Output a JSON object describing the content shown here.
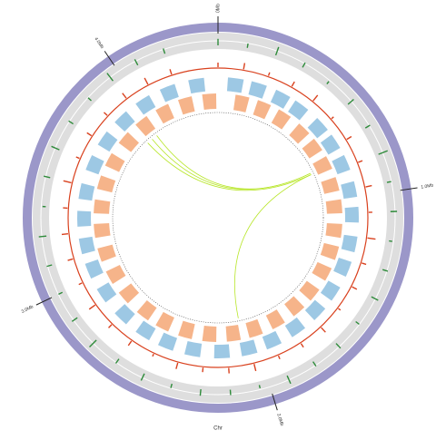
{
  "chart_data": {
    "type": "circos",
    "xlabel": "Chr",
    "xlim": [
      0,
      4.42
    ],
    "xticks": [
      {
        "value": 0,
        "label": "0Mb"
      },
      {
        "value": 1,
        "label": "1.0Mb"
      },
      {
        "value": 2,
        "label": "2.0Mb"
      },
      {
        "value": 3,
        "label": "3.0Mb"
      },
      {
        "value": 4,
        "label": "4.0Mb"
      }
    ],
    "x": [
      0,
      0.12,
      0.24,
      0.36,
      0.48,
      0.6,
      0.72,
      0.84,
      0.96,
      1.08,
      1.2,
      1.32,
      1.44,
      1.56,
      1.68,
      1.8,
      1.92,
      2.04,
      2.16,
      2.28,
      2.4,
      2.52,
      2.64,
      2.76,
      2.88,
      3.0,
      3.12,
      3.24,
      3.36,
      3.48,
      3.6,
      3.72,
      3.84,
      3.96,
      4.08,
      4.2
    ],
    "series": [
      {
        "color": "#2e8b3a",
        "values": [
          0.6,
          0.4,
          0.8,
          0.5,
          0.3,
          0.7,
          0.5,
          0.9,
          0.4,
          0.6,
          0.3,
          0.5,
          0.7,
          0.4,
          0.6,
          0.5,
          0.8,
          0.3,
          0.5,
          0.6,
          0.4,
          0.7,
          0.5,
          0.9,
          0.6,
          0.4,
          0.5,
          0.7,
          0.3,
          0.6,
          0.8,
          0.5,
          0.4,
          0.9,
          0.6,
          0.5
        ]
      },
      {
        "color": "#d9411e",
        "values": [
          0.5,
          0.7,
          0.4,
          0.6,
          0.8,
          0.3,
          0.6,
          0.5,
          0.7,
          0.4,
          0.9,
          0.5,
          0.6,
          0.3,
          0.7,
          0.5,
          0.4,
          0.8,
          0.6,
          0.5,
          0.7,
          0.3,
          0.6,
          0.5,
          0.8,
          0.4,
          0.6,
          0.7,
          0.5,
          0.9,
          0.4,
          0.6,
          0.5,
          0.7,
          0.8,
          0.6
        ]
      }
    ],
    "genes_forward": {
      "color": "#9dc8e4",
      "starts": [
        0.05,
        0.17,
        0.3,
        0.41,
        0.55,
        0.66,
        0.78,
        0.92,
        1.05,
        1.2,
        1.33,
        1.47,
        1.6,
        1.74,
        1.88,
        2.01,
        2.15,
        2.3,
        2.44,
        2.57,
        2.71,
        2.86,
        3.0,
        3.13,
        3.27,
        3.41,
        3.56,
        3.7,
        3.84,
        3.98,
        4.12,
        4.27
      ]
    },
    "genes_reverse": {
      "color": "#f6b48a",
      "starts": [
        0.1,
        0.23,
        0.36,
        0.5,
        0.62,
        0.74,
        0.87,
        1.0,
        1.14,
        1.27,
        1.4,
        1.54,
        1.67,
        1.81,
        1.95,
        2.08,
        2.22,
        2.36,
        2.5,
        2.63,
        2.78,
        2.92,
        3.06,
        3.2,
        3.34,
        3.48,
        3.62,
        3.77,
        3.91,
        4.05,
        4.19,
        4.33
      ]
    },
    "links": [
      {
        "source": 0.79,
        "target": 3.97
      },
      {
        "source": 0.79,
        "target": 3.93
      },
      {
        "source": 0.8,
        "target": 3.89
      },
      {
        "source": 0.8,
        "target": 2.07
      }
    ],
    "link_color": "#b8e62a"
  }
}
